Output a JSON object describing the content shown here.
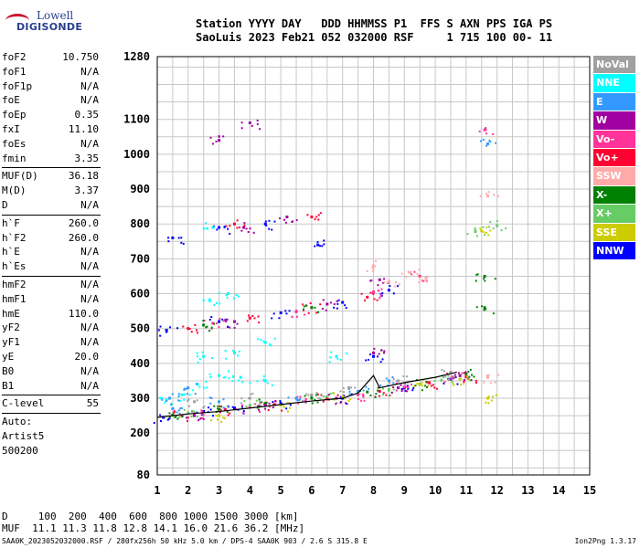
{
  "logo": {
    "line1": "Lowell",
    "line2": "DIGISONDE"
  },
  "header": {
    "line1": "Station YYYY DAY   DDD HHMMSS P1  FFS S AXN PPS IGA PS",
    "line2": "SaoLuis 2023 Feb21 052 032000 RSF     1 715 100 00- 11"
  },
  "params_group1": [
    {
      "k": "foF2",
      "v": "10.750"
    },
    {
      "k": "foF1",
      "v": "N/A"
    },
    {
      "k": "foF1p",
      "v": "N/A"
    },
    {
      "k": "foE",
      "v": "N/A"
    },
    {
      "k": "foEp",
      "v": "0.35"
    },
    {
      "k": "fxI",
      "v": "11.10"
    },
    {
      "k": "foEs",
      "v": "N/A"
    },
    {
      "k": "fmin",
      "v": "3.35"
    }
  ],
  "params_group2": [
    {
      "k": "MUF(D)",
      "v": "36.18"
    },
    {
      "k": "M(D)",
      "v": "3.37"
    },
    {
      "k": "D",
      "v": "N/A"
    }
  ],
  "params_group3": [
    {
      "k": "h`F",
      "v": "260.0"
    },
    {
      "k": "h`F2",
      "v": "260.0"
    },
    {
      "k": "h`E",
      "v": "N/A"
    },
    {
      "k": "h`Es",
      "v": "N/A"
    }
  ],
  "params_group4": [
    {
      "k": "hmF2",
      "v": "N/A"
    },
    {
      "k": "hmF1",
      "v": "N/A"
    },
    {
      "k": "hmE",
      "v": "110.0"
    },
    {
      "k": "yF2",
      "v": "N/A"
    },
    {
      "k": "yF1",
      "v": "N/A"
    },
    {
      "k": "yE",
      "v": "20.0"
    },
    {
      "k": "B0",
      "v": "N/A"
    },
    {
      "k": "B1",
      "v": "N/A"
    }
  ],
  "params_group5": [
    {
      "k": "C-level",
      "v": "55"
    }
  ],
  "autoscale": {
    "line1": "Auto:",
    "line2": "Artist5",
    "line3": "500200"
  },
  "bottom": {
    "d_line": "D     100  200  400  600  800 1000 1500 3000 [km]",
    "muf_line": "MUF  11.1 11.3 11.8 12.8 14.1 16.0 21.6 36.2 [MHz]"
  },
  "footer": {
    "left": "SAA0K_2023052032000.RSF / 280fx256h 50 kHz 5.0 km / DPS-4 SAA0K 903 / 2.6 S 315.8 E",
    "right": "Ion2Png 1.3.17"
  },
  "legend": [
    {
      "label": "NoVal",
      "color": "#a0a0a0"
    },
    {
      "label": "NNE",
      "color": "#00ffff"
    },
    {
      "label": "E",
      "color": "#3399ff"
    },
    {
      "label": "W",
      "color": "#a000a0"
    },
    {
      "label": "Vo-",
      "color": "#ff3399"
    },
    {
      "label": "Vo+",
      "color": "#ff0033"
    },
    {
      "label": "SSW",
      "color": "#ffaaaa"
    },
    {
      "label": "X-",
      "color": "#008000"
    },
    {
      "label": "X+",
      "color": "#66cc66"
    },
    {
      "label": "SSE",
      "color": "#cccc00"
    },
    {
      "label": "NNW",
      "color": "#0000ff"
    }
  ],
  "chart_data": {
    "type": "scatter",
    "title": "",
    "xlabel": "",
    "ylabel": "",
    "x_ticks": [
      1,
      2,
      3,
      4,
      5,
      6,
      7,
      8,
      9,
      10,
      11,
      12,
      13,
      14,
      15
    ],
    "y_ticks": [
      80,
      200,
      300,
      400,
      500,
      600,
      700,
      800,
      900,
      1000,
      1100,
      1280
    ],
    "xlim": [
      1,
      15
    ],
    "ylim": [
      80,
      1280
    ],
    "grid": true,
    "legend_position": "right",
    "series": [
      {
        "name": "NNW",
        "color": "#0000ff",
        "points": [
          [
            1.2,
            245
          ],
          [
            2.5,
            262
          ],
          [
            3.5,
            272
          ],
          [
            5,
            285
          ],
          [
            7,
            300
          ],
          [
            9,
            330
          ],
          [
            10.5,
            355
          ],
          [
            1.3,
            495
          ],
          [
            3,
            520
          ],
          [
            5,
            545
          ],
          [
            7,
            575
          ],
          [
            8.5,
            610
          ],
          [
            1.5,
            760
          ],
          [
            3,
            790
          ],
          [
            4.5,
            800
          ],
          [
            6.2,
            740
          ],
          [
            8,
            420
          ]
        ]
      },
      {
        "name": "Vo+",
        "color": "#ff0033",
        "points": [
          [
            1.8,
            250
          ],
          [
            3.2,
            268
          ],
          [
            4.8,
            282
          ],
          [
            6.5,
            298
          ],
          [
            8.2,
            320
          ],
          [
            9.8,
            345
          ],
          [
            11,
            362
          ],
          [
            2,
            500
          ],
          [
            4,
            530
          ],
          [
            6,
            560
          ],
          [
            7.8,
            590
          ],
          [
            3.5,
            800
          ],
          [
            6,
            820
          ]
        ]
      },
      {
        "name": "Vo-",
        "color": "#ff3399",
        "points": [
          [
            2.2,
            255
          ],
          [
            4,
            275
          ],
          [
            5.8,
            292
          ],
          [
            7.5,
            310
          ],
          [
            9,
            332
          ],
          [
            10.6,
            360
          ],
          [
            2.8,
            515
          ],
          [
            5.5,
            548
          ],
          [
            8,
            605
          ],
          [
            9.5,
            650
          ],
          [
            11.6,
            1070
          ]
        ]
      },
      {
        "name": "X-",
        "color": "#008000",
        "points": [
          [
            1.5,
            252
          ],
          [
            3,
            268
          ],
          [
            4.5,
            285
          ],
          [
            6,
            300
          ],
          [
            7.8,
            318
          ],
          [
            9.5,
            340
          ],
          [
            11,
            370
          ],
          [
            2.5,
            510
          ],
          [
            6,
            560
          ],
          [
            11.6,
            560
          ],
          [
            11.6,
            650
          ]
        ]
      },
      {
        "name": "X+",
        "color": "#66cc66",
        "points": [
          [
            2,
            258
          ],
          [
            4,
            280
          ],
          [
            6.5,
            305
          ],
          [
            8.5,
            325
          ],
          [
            10.2,
            352
          ],
          [
            11.3,
            778
          ],
          [
            12,
            795
          ]
        ]
      },
      {
        "name": "NNE",
        "color": "#00ffff",
        "points": [
          [
            1.3,
            295
          ],
          [
            1.8,
            310
          ],
          [
            2.3,
            340
          ],
          [
            3,
            365
          ],
          [
            3.7,
            360
          ],
          [
            4.5,
            350
          ],
          [
            2.5,
            420
          ],
          [
            3.5,
            430
          ],
          [
            4.5,
            460
          ],
          [
            6.8,
            420
          ],
          [
            2.7,
            580
          ],
          [
            3.3,
            600
          ],
          [
            2.8,
            790
          ]
        ]
      },
      {
        "name": "E",
        "color": "#3399ff",
        "points": [
          [
            1.5,
            270
          ],
          [
            3,
            290
          ],
          [
            5.5,
            300
          ],
          [
            7.5,
            320
          ],
          [
            8.5,
            350
          ],
          [
            1.4,
            300
          ],
          [
            2,
            330
          ],
          [
            11.7,
            1030
          ]
        ]
      },
      {
        "name": "W",
        "color": "#a000a0",
        "points": [
          [
            2.2,
            250
          ],
          [
            4.5,
            280
          ],
          [
            6.8,
            300
          ],
          [
            8.8,
            330
          ],
          [
            10.8,
            365
          ],
          [
            3.5,
            520
          ],
          [
            6.5,
            570
          ],
          [
            8.2,
            640
          ],
          [
            3.8,
            790
          ],
          [
            5.2,
            820
          ],
          [
            3,
            1040
          ],
          [
            4,
            1090
          ],
          [
            8,
            430
          ]
        ]
      },
      {
        "name": "SSW",
        "color": "#ffaaaa",
        "points": [
          [
            8.5,
            635
          ],
          [
            9.2,
            660
          ],
          [
            9.7,
            645
          ],
          [
            8,
            680
          ],
          [
            11.7,
            880
          ],
          [
            11.7,
            360
          ]
        ]
      },
      {
        "name": "SSE",
        "color": "#cccc00",
        "points": [
          [
            3,
            250
          ],
          [
            5,
            280
          ],
          [
            7,
            305
          ],
          [
            9.5,
            340
          ],
          [
            10.8,
            355
          ],
          [
            11.5,
            780
          ],
          [
            11.7,
            300
          ]
        ]
      },
      {
        "name": "NoVal",
        "color": "#a0a0a0",
        "points": [
          [
            2.2,
            290
          ],
          [
            4,
            300
          ],
          [
            6,
            310
          ],
          [
            7.2,
            330
          ],
          [
            8.8,
            350
          ],
          [
            10.5,
            375
          ]
        ]
      }
    ],
    "trace": [
      [
        1,
        245
      ],
      [
        2,
        255
      ],
      [
        3,
        262
      ],
      [
        4,
        272
      ],
      [
        5,
        282
      ],
      [
        6,
        292
      ],
      [
        7,
        300
      ],
      [
        7.5,
        315
      ],
      [
        8,
        365
      ],
      [
        8.2,
        330
      ],
      [
        9,
        345
      ],
      [
        10,
        360
      ],
      [
        10.7,
        375
      ]
    ]
  }
}
